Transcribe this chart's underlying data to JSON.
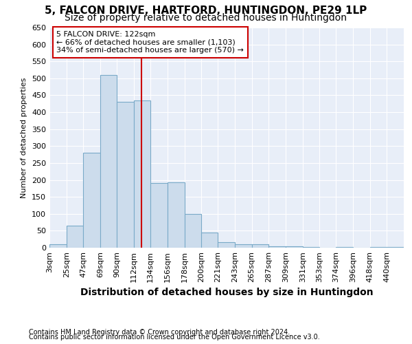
{
  "title1": "5, FALCON DRIVE, HARTFORD, HUNTINGDON, PE29 1LP",
  "title2": "Size of property relative to detached houses in Huntingdon",
  "xlabel": "Distribution of detached houses by size in Huntingdon",
  "ylabel": "Number of detached properties",
  "footer1": "Contains HM Land Registry data © Crown copyright and database right 2024.",
  "footer2": "Contains public sector information licensed under the Open Government Licence v3.0.",
  "annotation_line1": "5 FALCON DRIVE: 122sqm",
  "annotation_line2": "← 66% of detached houses are smaller (1,103)",
  "annotation_line3": "34% of semi-detached houses are larger (570) →",
  "bin_starts": [
    3,
    25,
    47,
    69,
    90,
    112,
    134,
    156,
    178,
    200,
    221,
    243,
    265,
    287,
    309,
    331,
    353,
    374,
    396,
    418,
    440
  ],
  "bin_labels": [
    "3sqm",
    "25sqm",
    "47sqm",
    "69sqm",
    "90sqm",
    "112sqm",
    "134sqm",
    "156sqm",
    "178sqm",
    "200sqm",
    "221sqm",
    "243sqm",
    "265sqm",
    "287sqm",
    "309sqm",
    "331sqm",
    "353sqm",
    "374sqm",
    "396sqm",
    "418sqm",
    "440sqm"
  ],
  "values": [
    10,
    65,
    280,
    510,
    430,
    435,
    190,
    192,
    100,
    45,
    17,
    10,
    10,
    4,
    4,
    2,
    0,
    2,
    0,
    3,
    2
  ],
  "bar_color": "#ccdcec",
  "bar_edge_color": "#7aaac8",
  "vline_color": "#cc0000",
  "vline_x": 122,
  "ylim": [
    0,
    650
  ],
  "yticks": [
    0,
    50,
    100,
    150,
    200,
    250,
    300,
    350,
    400,
    450,
    500,
    550,
    600,
    650
  ],
  "bg_color": "#ffffff",
  "plot_bg_color": "#e8eef8",
  "grid_color": "#ffffff",
  "annotation_box_bg": "#ffffff",
  "annotation_box_edge": "#cc0000",
  "title1_fontsize": 11,
  "title2_fontsize": 10,
  "xlabel_fontsize": 10,
  "ylabel_fontsize": 8,
  "tick_fontsize": 8,
  "annotation_fontsize": 8,
  "footer_fontsize": 7
}
